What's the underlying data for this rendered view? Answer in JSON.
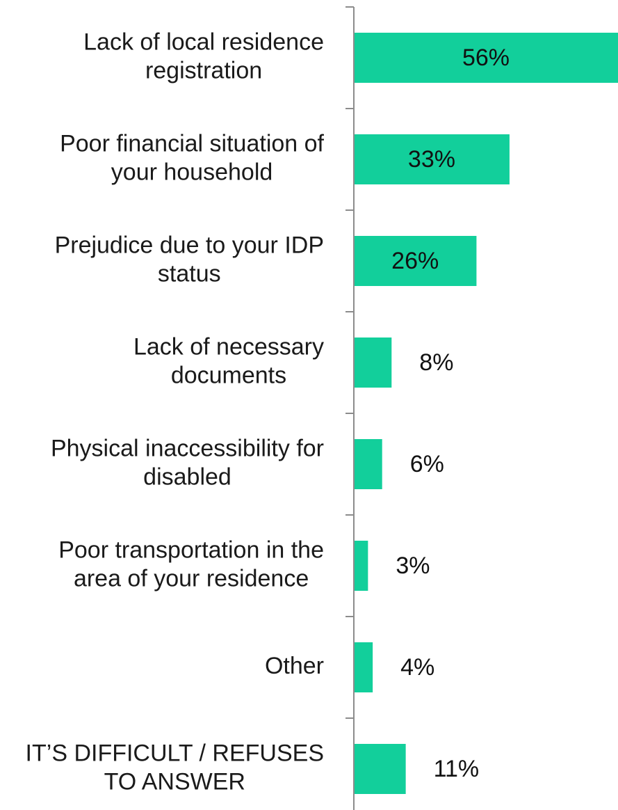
{
  "chart_data": {
    "type": "bar",
    "orientation": "horizontal",
    "categories": [
      [
        "Lack of local residence",
        "registration"
      ],
      [
        "Poor financial situation of",
        "your household"
      ],
      [
        "Prejudice due to your IDP",
        "status"
      ],
      [
        "Lack of necessary",
        "documents"
      ],
      [
        "Physical inaccessibility for",
        "disabled"
      ],
      [
        "Poor transportation in the",
        "area of your residence"
      ],
      [
        "Other"
      ],
      [
        "IT’S DIFFICULT / REFUSES",
        "TO ANSWER"
      ]
    ],
    "values": [
      56,
      33,
      26,
      8,
      6,
      3,
      4,
      11
    ],
    "value_labels": [
      "56%",
      "33%",
      "26%",
      "8%",
      "6%",
      "3%",
      "4%",
      "11%"
    ],
    "xlim": [
      0,
      56
    ],
    "bar_color": "#12CF9B",
    "axis_color": "#8C8C8C",
    "title": "",
    "xlabel": "",
    "ylabel": "",
    "grid": false,
    "legend": "none"
  }
}
